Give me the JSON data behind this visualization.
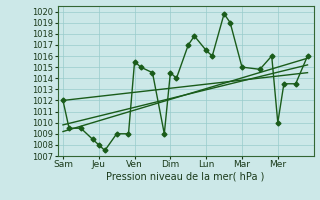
{
  "xlabel": "Pression niveau de la mer( hPa )",
  "background_color": "#cce8e8",
  "grid_color": "#99cccc",
  "line_color": "#1a5c1a",
  "xlabels": [
    "Sam",
    "Jeu",
    "Ven",
    "Dim",
    "Lun",
    "Mar",
    "Mer"
  ],
  "x_positions": [
    0,
    1,
    2,
    3,
    4,
    5,
    6
  ],
  "ylim": [
    1007,
    1020.5
  ],
  "yticks": [
    1007,
    1008,
    1009,
    1010,
    1011,
    1012,
    1013,
    1014,
    1015,
    1016,
    1017,
    1018,
    1019,
    1020
  ],
  "main_x": [
    0.0,
    0.17,
    0.5,
    0.83,
    1.0,
    1.17,
    1.5,
    1.83,
    2.0,
    2.17,
    2.5,
    2.83,
    3.0,
    3.17,
    3.5,
    3.67,
    4.0,
    4.17,
    4.5,
    4.67,
    5.0,
    5.5,
    5.83,
    6.0,
    6.17,
    6.5,
    6.83
  ],
  "main_y": [
    1012,
    1009.5,
    1009.5,
    1008.5,
    1008,
    1007.5,
    1009,
    1009,
    1015.5,
    1015,
    1014.5,
    1009,
    1014.5,
    1014,
    1017,
    1017.8,
    1016.5,
    1016,
    1019.8,
    1019,
    1015,
    1014.8,
    1016,
    1010,
    1013.5,
    1013.5,
    1016
  ],
  "trend1_x": [
    0.0,
    6.83
  ],
  "trend1_y": [
    1009.2,
    1015.8
  ],
  "trend2_x": [
    0.0,
    6.83
  ],
  "trend2_y": [
    1009.8,
    1015.2
  ],
  "trend3_x": [
    0.0,
    6.83
  ],
  "trend3_y": [
    1012.0,
    1014.5
  ],
  "xlim": [
    -0.15,
    7.0
  ],
  "marker": "D",
  "markersize": 2.5,
  "linewidth": 1.0
}
